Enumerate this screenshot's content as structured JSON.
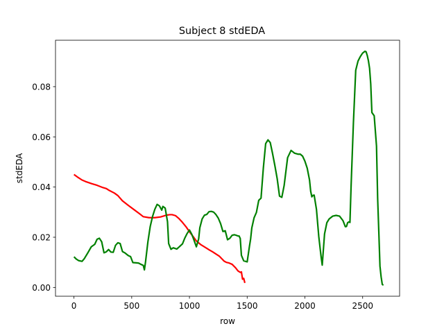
{
  "chart_data": {
    "type": "line",
    "title": "Subject 8 stdEDA",
    "xlabel": "row",
    "ylabel": "stdEDA",
    "xlim": [
      -160,
      2820
    ],
    "ylim": [
      -0.0035,
      0.0985
    ],
    "xticks": [
      0,
      500,
      1000,
      1500,
      2000,
      2500
    ],
    "xtick_labels": [
      "0",
      "500",
      "1000",
      "1500",
      "2000",
      "2500"
    ],
    "yticks": [
      0.0,
      0.02,
      0.04,
      0.06,
      0.08
    ],
    "ytick_labels": [
      "0.00",
      "0.02",
      "0.04",
      "0.06",
      "0.08"
    ],
    "grid": false,
    "legend": "none",
    "series": [
      {
        "color": "#ff0000",
        "x": [
          0,
          30,
          70,
          100,
          150,
          200,
          250,
          280,
          300,
          350,
          380,
          420,
          470,
          520,
          570,
          600,
          650,
          700,
          750,
          800,
          830,
          850,
          880,
          910,
          940,
          970,
          1000,
          1030,
          1060,
          1100,
          1150,
          1170,
          1200,
          1230,
          1260,
          1300,
          1320,
          1340,
          1370,
          1400,
          1420,
          1440,
          1450,
          1460,
          1470,
          1480
        ],
        "y": [
          0.045,
          0.044,
          0.0428,
          0.0422,
          0.0414,
          0.0407,
          0.0398,
          0.0394,
          0.0388,
          0.0376,
          0.0366,
          0.0345,
          0.0327,
          0.031,
          0.0293,
          0.0282,
          0.0278,
          0.0278,
          0.0281,
          0.0288,
          0.029,
          0.029,
          0.0286,
          0.0274,
          0.0259,
          0.0242,
          0.0222,
          0.0204,
          0.0185,
          0.017,
          0.0156,
          0.015,
          0.0142,
          0.0133,
          0.0124,
          0.0105,
          0.01,
          0.0098,
          0.0092,
          0.0078,
          0.0066,
          0.006,
          0.0062,
          0.0033,
          0.0036,
          0.0018
        ]
      },
      {
        "color": "#008000",
        "x": [
          0,
          20,
          40,
          70,
          90,
          120,
          150,
          180,
          200,
          220,
          240,
          260,
          280,
          300,
          320,
          340,
          360,
          380,
          400,
          420,
          440,
          470,
          490,
          510,
          540,
          560,
          580,
          600,
          610,
          620,
          640,
          660,
          680,
          700,
          720,
          740,
          760,
          770,
          790,
          810,
          820,
          840,
          860,
          890,
          910,
          940,
          960,
          980,
          1000,
          1020,
          1040,
          1060,
          1080,
          1090,
          1110,
          1130,
          1150,
          1170,
          1190,
          1210,
          1230,
          1250,
          1270,
          1290,
          1310,
          1330,
          1350,
          1370,
          1390,
          1410,
          1420,
          1430,
          1440,
          1450,
          1470,
          1500,
          1520,
          1530,
          1540,
          1560,
          1580,
          1600,
          1620,
          1640,
          1660,
          1680,
          1700,
          1720,
          1740,
          1760,
          1780,
          1800,
          1820,
          1850,
          1880,
          1910,
          1940,
          1960,
          1980,
          2000,
          2020,
          2040,
          2050,
          2060,
          2070,
          2080,
          2100,
          2120,
          2140,
          2150,
          2170,
          2190,
          2210,
          2240,
          2270,
          2300,
          2330,
          2350,
          2360,
          2370,
          2380,
          2390,
          2400,
          2420,
          2440,
          2460,
          2480,
          2500,
          2520,
          2530,
          2540,
          2550,
          2560,
          2570,
          2580,
          2600,
          2620,
          2630,
          2640,
          2650,
          2660,
          2670,
          2680
        ],
        "y": [
          0.0122,
          0.0113,
          0.0107,
          0.0104,
          0.0115,
          0.0138,
          0.0162,
          0.0172,
          0.0192,
          0.0196,
          0.0182,
          0.0138,
          0.0142,
          0.0151,
          0.0141,
          0.014,
          0.0168,
          0.0178,
          0.0175,
          0.0143,
          0.0138,
          0.0127,
          0.0123,
          0.0099,
          0.0098,
          0.0097,
          0.0092,
          0.0088,
          0.007,
          0.0103,
          0.0181,
          0.0242,
          0.0282,
          0.0311,
          0.0331,
          0.0325,
          0.0308,
          0.0323,
          0.0316,
          0.0262,
          0.0175,
          0.0152,
          0.0158,
          0.0153,
          0.0161,
          0.0174,
          0.0197,
          0.0215,
          0.0229,
          0.0212,
          0.0188,
          0.0162,
          0.0194,
          0.0238,
          0.0273,
          0.0288,
          0.0291,
          0.0302,
          0.0303,
          0.03,
          0.029,
          0.0276,
          0.0254,
          0.0223,
          0.0226,
          0.019,
          0.0196,
          0.0208,
          0.021,
          0.0207,
          0.0205,
          0.0205,
          0.0195,
          0.0128,
          0.0106,
          0.0102,
          0.0165,
          0.0194,
          0.0237,
          0.0278,
          0.0299,
          0.0347,
          0.0356,
          0.0476,
          0.0573,
          0.0588,
          0.0577,
          0.0533,
          0.0485,
          0.0433,
          0.0364,
          0.0359,
          0.0406,
          0.0517,
          0.0546,
          0.0535,
          0.0531,
          0.0531,
          0.0523,
          0.0503,
          0.0475,
          0.0428,
          0.0383,
          0.0361,
          0.0367,
          0.0368,
          0.0311,
          0.0203,
          0.0123,
          0.0089,
          0.0213,
          0.0258,
          0.0273,
          0.0284,
          0.0287,
          0.0284,
          0.0266,
          0.0242,
          0.0243,
          0.0258,
          0.0261,
          0.0259,
          0.0405,
          0.0656,
          0.0865,
          0.0902,
          0.092,
          0.0934,
          0.0941,
          0.0939,
          0.0924,
          0.0903,
          0.0873,
          0.0811,
          0.0697,
          0.0684,
          0.0563,
          0.0353,
          0.0221,
          0.0085,
          0.0042,
          0.0012,
          0.0009
        ]
      }
    ]
  }
}
